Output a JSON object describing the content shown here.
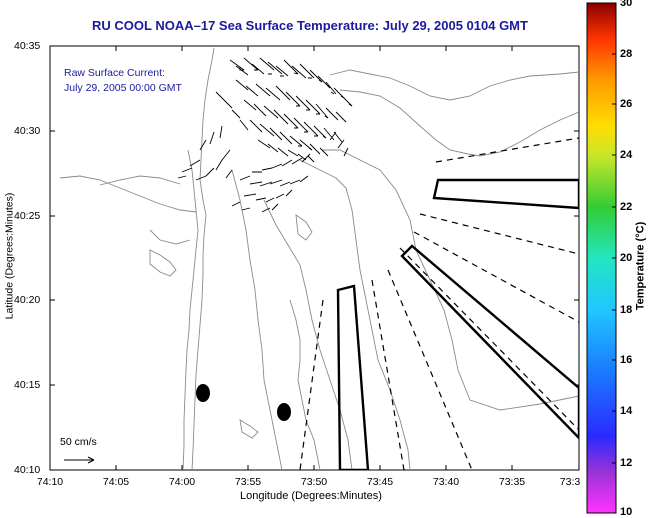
{
  "title": "RU COOL  NOAA–17  Sea Surface Temperature:  July 29, 2005 0104 GMT",
  "legend": {
    "line1": "Raw Surface Current:",
    "line2": "July 29, 2005 00:00 GMT"
  },
  "scale_label": "50 cm/s",
  "axes": {
    "xlabel": "Longitude (Degrees:Minutes)",
    "ylabel": "Latitude (Degrees:Minutes)",
    "xticks": [
      "74:10",
      "74:05",
      "74:00",
      "73:55",
      "73:50",
      "73:45",
      "73:40",
      "73:35",
      "73:3"
    ],
    "yticks": [
      "40:35",
      "40:30",
      "40:25",
      "40:20",
      "40:15",
      "40:10"
    ]
  },
  "colorbar": {
    "label": "Temperature (°C)",
    "ticks": [
      "30",
      "28",
      "26",
      "24",
      "22",
      "20",
      "18",
      "16",
      "14",
      "12",
      "10"
    ],
    "range": [
      10,
      30
    ]
  }
}
